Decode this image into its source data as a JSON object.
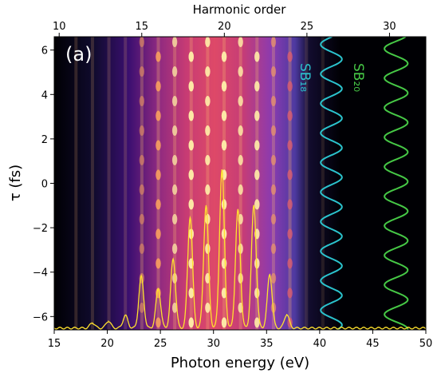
{
  "chart_data": {
    "type": "heatmap",
    "panel_label": "(a)",
    "xlabel": "Photon energy (eV)",
    "ylabel": "τ (fs)",
    "top_xlabel": "Harmonic order",
    "xlim": [
      15,
      50
    ],
    "ylim": [
      -6.6,
      6.6
    ],
    "top_xlim": [
      9.7,
      32.2
    ],
    "x_ticks": [
      "15",
      "20",
      "25",
      "30",
      "35",
      "40",
      "45",
      "50"
    ],
    "y_ticks": [
      "−6",
      "−4",
      "−2",
      "0",
      "2",
      "4",
      "6"
    ],
    "top_ticks": [
      "10",
      "15",
      "20",
      "25",
      "30"
    ],
    "colormap": "magma",
    "harmonic_photon_energy_eV": 1.55,
    "oscillation_period_fs": 1.33,
    "spectrum_peaks": [
      {
        "x": 18.6,
        "y": -6.28
      },
      {
        "x": 20.1,
        "y": -6.2
      },
      {
        "x": 21.7,
        "y": -5.95
      },
      {
        "x": 23.2,
        "y": -4.2
      },
      {
        "x": 24.8,
        "y": -4.75
      },
      {
        "x": 26.2,
        "y": -3.4
      },
      {
        "x": 27.8,
        "y": -1.5
      },
      {
        "x": 29.3,
        "y": -1.0
      },
      {
        "x": 30.8,
        "y": 0.6
      },
      {
        "x": 32.3,
        "y": -1.2
      },
      {
        "x": 33.8,
        "y": -1.0
      },
      {
        "x": 35.3,
        "y": -4.1
      },
      {
        "x": 36.9,
        "y": -5.9
      }
    ],
    "series": [
      {
        "name": "SB₁₈",
        "color": "#2bc3cd",
        "baseline_eV": 41.1,
        "amplitude_eV": 1.0
      },
      {
        "name": "SB₂₀",
        "color": "#46c846",
        "baseline_eV": 47.2,
        "amplitude_eV": 1.1
      }
    ],
    "spectrum_color": "#ffe22e"
  }
}
